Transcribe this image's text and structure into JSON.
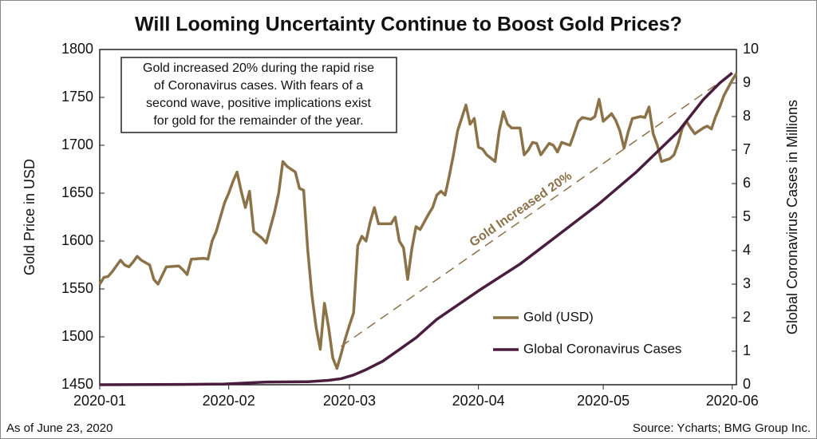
{
  "chart_data": {
    "type": "line",
    "title": "Will Looming Uncertainty Continue to Boost Gold Prices?",
    "ylabel": "Gold Price in USD",
    "y2label": "Global Coronavirus Cases in Millions",
    "annotation": [
      "Gold increased 20% during the rapid rise",
      "of Coronavirus cases. With fears of a",
      "second wave, positive implications exist",
      "for gold for the remainder of the year."
    ],
    "note": "As of June 23, 2020",
    "source": "Source: Ycharts; BMG Group Inc.",
    "legend": "lower right",
    "xlim": [
      0,
      153
    ],
    "xticks": [
      {
        "value": 0,
        "label": "2020-01"
      },
      {
        "value": 31,
        "label": "2020-02"
      },
      {
        "value": 60,
        "label": "2020-03"
      },
      {
        "value": 91,
        "label": "2020-04"
      },
      {
        "value": 121,
        "label": "2020-05"
      },
      {
        "value": 152,
        "label": "2020-06"
      }
    ],
    "ylim": [
      1450,
      1800
    ],
    "yticks": [
      1450,
      1500,
      1550,
      1600,
      1650,
      1700,
      1750,
      1800
    ],
    "y2lim": [
      0,
      10
    ],
    "y2ticks": [
      0,
      1,
      2,
      3,
      4,
      5,
      6,
      7,
      8,
      9,
      10
    ],
    "series": [
      {
        "name": "Gold (USD)",
        "color": "#8c7249",
        "x": [
          0,
          1,
          2,
          3,
          5,
          6,
          7,
          8,
          9,
          10,
          12,
          13,
          14,
          16,
          19,
          20,
          21,
          22,
          25,
          26,
          27,
          28,
          30,
          31,
          32,
          33,
          34,
          35,
          36,
          37,
          39,
          40,
          42,
          43,
          44,
          45,
          47,
          48,
          49,
          50,
          51,
          52,
          53,
          54,
          55,
          56,
          57,
          58,
          59,
          60,
          61,
          62,
          63,
          64,
          65,
          66,
          67,
          70,
          71,
          72,
          73,
          74,
          75,
          76,
          77,
          79,
          80,
          81,
          82,
          83,
          84,
          85,
          86,
          88,
          89,
          90,
          91,
          92,
          93,
          95,
          96,
          97,
          98,
          99,
          101,
          102,
          103,
          104,
          105,
          106,
          108,
          109,
          110,
          111,
          113,
          114,
          115,
          116,
          118,
          119,
          120,
          121,
          123,
          124,
          125,
          126,
          127,
          128,
          130,
          131,
          132,
          133,
          134,
          135,
          137,
          138,
          139,
          140,
          141,
          142,
          143,
          145,
          146,
          147,
          148,
          149,
          150,
          151,
          152,
          153
        ],
        "values": [
          1555,
          1562,
          1563,
          1568,
          1580,
          1575,
          1573,
          1578,
          1584,
          1580,
          1575,
          1560,
          1555,
          1573,
          1574,
          1570,
          1565,
          1581,
          1582,
          1581,
          1600,
          1610,
          1640,
          1650,
          1662,
          1672,
          1652,
          1635,
          1652,
          1610,
          1603,
          1598,
          1630,
          1650,
          1683,
          1678,
          1672,
          1655,
          1653,
          1590,
          1543,
          1510,
          1487,
          1535,
          1510,
          1478,
          1467,
          1482,
          1498,
          1512,
          1525,
          1595,
          1605,
          1600,
          1620,
          1635,
          1618,
          1618,
          1625,
          1600,
          1593,
          1560,
          1592,
          1615,
          1612,
          1628,
          1635,
          1648,
          1652,
          1648,
          1668,
          1690,
          1715,
          1742,
          1722,
          1728,
          1698,
          1696,
          1690,
          1683,
          1715,
          1735,
          1722,
          1718,
          1718,
          1690,
          1695,
          1703,
          1702,
          1690,
          1702,
          1700,
          1693,
          1703,
          1700,
          1712,
          1725,
          1729,
          1727,
          1730,
          1748,
          1725,
          1733,
          1726,
          1715,
          1697,
          1714,
          1728,
          1730,
          1729,
          1740,
          1712,
          1700,
          1683,
          1686,
          1690,
          1702,
          1718,
          1725,
          1718,
          1712,
          1718,
          1720,
          1717,
          1730,
          1740,
          1752,
          1760,
          1768,
          1775
        ]
      },
      {
        "name": "Global Coronavirus Cases",
        "color": "#4a1d3e",
        "axis": "y2",
        "x": [
          0,
          20,
          30,
          40,
          50,
          55,
          58,
          61,
          64,
          68,
          72,
          76,
          81,
          91,
          101,
          110,
          120,
          129,
          139,
          145,
          149,
          152
        ],
        "values": [
          0,
          0.01,
          0.02,
          0.08,
          0.09,
          0.13,
          0.18,
          0.29,
          0.45,
          0.7,
          1.05,
          1.4,
          1.95,
          2.8,
          3.6,
          4.45,
          5.4,
          6.35,
          7.55,
          8.5,
          9.0,
          9.3
        ]
      }
    ],
    "trend_line": {
      "label": "Gold Increased 20%",
      "x": [
        58,
        152
      ],
      "values": [
        1490,
        1775
      ]
    }
  }
}
